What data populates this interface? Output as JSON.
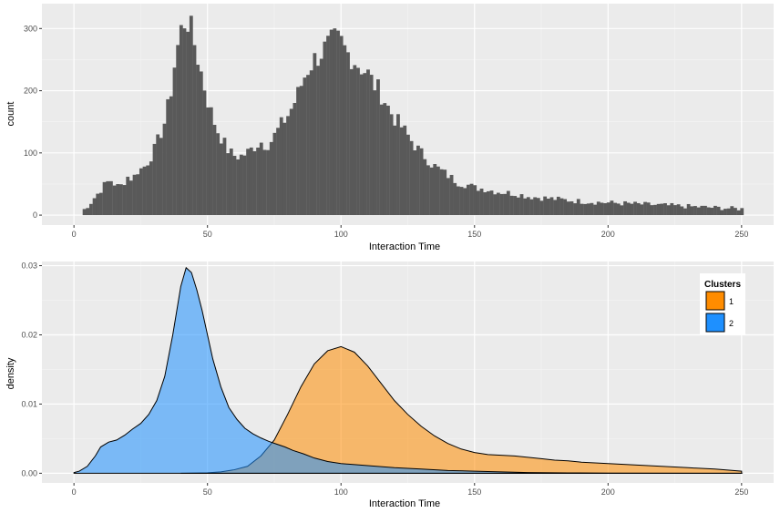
{
  "chart_data": [
    {
      "type": "bar",
      "subtype": "histogram",
      "xlabel": "Interaction Time",
      "ylabel": "count",
      "xlim": [
        -12,
        262
      ],
      "ylim": [
        -16,
        340
      ],
      "xticks": [
        0,
        50,
        100,
        150,
        200,
        250
      ],
      "yticks": [
        0,
        100,
        200,
        300
      ],
      "grid": true,
      "bar_color": "#595959",
      "panel_color": "#ebebeb",
      "binwidth": 1.25,
      "profile_points": [
        [
          2,
          0
        ],
        [
          4,
          10
        ],
        [
          6,
          18
        ],
        [
          8,
          30
        ],
        [
          10,
          40
        ],
        [
          12,
          52
        ],
        [
          14,
          56
        ],
        [
          16,
          46
        ],
        [
          18,
          48
        ],
        [
          20,
          62
        ],
        [
          22,
          58
        ],
        [
          24,
          72
        ],
        [
          26,
          76
        ],
        [
          28,
          88
        ],
        [
          30,
          104
        ],
        [
          32,
          126
        ],
        [
          34,
          150
        ],
        [
          36,
          190
        ],
        [
          38,
          252
        ],
        [
          40,
          296
        ],
        [
          42,
          318
        ],
        [
          44,
          296
        ],
        [
          46,
          260
        ],
        [
          48,
          222
        ],
        [
          50,
          186
        ],
        [
          52,
          156
        ],
        [
          54,
          134
        ],
        [
          56,
          118
        ],
        [
          58,
          102
        ],
        [
          60,
          96
        ],
        [
          62,
          94
        ],
        [
          64,
          98
        ],
        [
          66,
          104
        ],
        [
          68,
          112
        ],
        [
          70,
          118
        ],
        [
          72,
          112
        ],
        [
          74,
          120
        ],
        [
          76,
          134
        ],
        [
          78,
          148
        ],
        [
          80,
          160
        ],
        [
          82,
          176
        ],
        [
          84,
          196
        ],
        [
          86,
          220
        ],
        [
          88,
          238
        ],
        [
          90,
          250
        ],
        [
          92,
          258
        ],
        [
          94,
          268
        ],
        [
          96,
          276
        ],
        [
          98,
          282
        ],
        [
          100,
          278
        ],
        [
          102,
          262
        ],
        [
          104,
          254
        ],
        [
          106,
          244
        ],
        [
          108,
          236
        ],
        [
          110,
          228
        ],
        [
          112,
          212
        ],
        [
          114,
          202
        ],
        [
          116,
          188
        ],
        [
          118,
          170
        ],
        [
          120,
          156
        ],
        [
          122,
          146
        ],
        [
          124,
          134
        ],
        [
          126,
          122
        ],
        [
          128,
          110
        ],
        [
          130,
          100
        ],
        [
          132,
          92
        ],
        [
          134,
          82
        ],
        [
          136,
          76
        ],
        [
          138,
          70
        ],
        [
          140,
          64
        ],
        [
          142,
          58
        ],
        [
          144,
          52
        ],
        [
          146,
          50
        ],
        [
          148,
          48
        ],
        [
          150,
          44
        ],
        [
          154,
          42
        ],
        [
          158,
          38
        ],
        [
          162,
          36
        ],
        [
          166,
          34
        ],
        [
          170,
          30
        ],
        [
          175,
          28
        ],
        [
          180,
          26
        ],
        [
          185,
          24
        ],
        [
          190,
          22
        ],
        [
          195,
          21
        ],
        [
          200,
          20
        ],
        [
          205,
          19
        ],
        [
          210,
          18
        ],
        [
          215,
          17
        ],
        [
          220,
          16
        ],
        [
          225,
          15
        ],
        [
          230,
          14
        ],
        [
          235,
          13
        ],
        [
          240,
          12
        ],
        [
          245,
          11
        ],
        [
          250,
          10
        ]
      ]
    },
    {
      "type": "area",
      "subtype": "density",
      "xlabel": "Interaction Time",
      "ylabel": "density",
      "xlim": [
        -12,
        262
      ],
      "ylim": [
        -0.0014,
        0.0306
      ],
      "xticks": [
        0,
        50,
        100,
        150,
        200,
        250
      ],
      "yticks": [
        0,
        0.01,
        0.02,
        0.03
      ],
      "ytick_labels": [
        "0.00",
        "0.01",
        "0.02",
        "0.03"
      ],
      "grid": true,
      "legend": {
        "title": "Clusters",
        "position": "top-right"
      },
      "series": [
        {
          "name": "1",
          "color": "#ff8c00",
          "points": [
            [
              40,
              0
            ],
            [
              45,
              3e-05
            ],
            [
              50,
              6e-05
            ],
            [
              55,
              0.0002
            ],
            [
              60,
              0.0005
            ],
            [
              65,
              0.001
            ],
            [
              70,
              0.0025
            ],
            [
              75,
              0.0048
            ],
            [
              80,
              0.0085
            ],
            [
              85,
              0.0125
            ],
            [
              90,
              0.0158
            ],
            [
              95,
              0.0177
            ],
            [
              100,
              0.0183
            ],
            [
              105,
              0.0175
            ],
            [
              110,
              0.0155
            ],
            [
              115,
              0.013
            ],
            [
              120,
              0.0105
            ],
            [
              125,
              0.0085
            ],
            [
              130,
              0.0068
            ],
            [
              135,
              0.0054
            ],
            [
              140,
              0.0043
            ],
            [
              145,
              0.0035
            ],
            [
              150,
              0.003
            ],
            [
              155,
              0.0027
            ],
            [
              160,
              0.0026
            ],
            [
              165,
              0.0025
            ],
            [
              170,
              0.0023
            ],
            [
              175,
              0.0021
            ],
            [
              180,
              0.0019
            ],
            [
              185,
              0.0018
            ],
            [
              190,
              0.0016
            ],
            [
              200,
              0.0014
            ],
            [
              210,
              0.0012
            ],
            [
              220,
              0.001
            ],
            [
              230,
              0.0008
            ],
            [
              240,
              0.0006
            ],
            [
              250,
              0.0003
            ]
          ]
        },
        {
          "name": "2",
          "color": "#1e90ff",
          "points": [
            [
              0,
              0.0001
            ],
            [
              2,
              0.0003
            ],
            [
              5,
              0.001
            ],
            [
              8,
              0.0025
            ],
            [
              10,
              0.0038
            ],
            [
              13,
              0.0045
            ],
            [
              16,
              0.0048
            ],
            [
              19,
              0.0055
            ],
            [
              22,
              0.0064
            ],
            [
              25,
              0.0072
            ],
            [
              28,
              0.0085
            ],
            [
              31,
              0.0105
            ],
            [
              34,
              0.014
            ],
            [
              37,
              0.02
            ],
            [
              40,
              0.027
            ],
            [
              42,
              0.0297
            ],
            [
              44,
              0.029
            ],
            [
              46,
              0.0265
            ],
            [
              48,
              0.0235
            ],
            [
              50,
              0.02
            ],
            [
              52,
              0.0165
            ],
            [
              55,
              0.0125
            ],
            [
              58,
              0.0095
            ],
            [
              61,
              0.0078
            ],
            [
              64,
              0.0065
            ],
            [
              67,
              0.0057
            ],
            [
              70,
              0.0051
            ],
            [
              73,
              0.0046
            ],
            [
              76,
              0.0042
            ],
            [
              79,
              0.0038
            ],
            [
              82,
              0.0033
            ],
            [
              86,
              0.0028
            ],
            [
              90,
              0.0022
            ],
            [
              95,
              0.0017
            ],
            [
              100,
              0.0014
            ],
            [
              110,
              0.0011
            ],
            [
              120,
              0.0008
            ],
            [
              130,
              0.0006
            ],
            [
              140,
              0.0004
            ],
            [
              150,
              0.0003
            ],
            [
              160,
              0.0002
            ],
            [
              170,
              0.0001
            ],
            [
              185,
              5e-05
            ],
            [
              200,
              2e-05
            ],
            [
              250,
              0
            ]
          ]
        }
      ]
    }
  ]
}
